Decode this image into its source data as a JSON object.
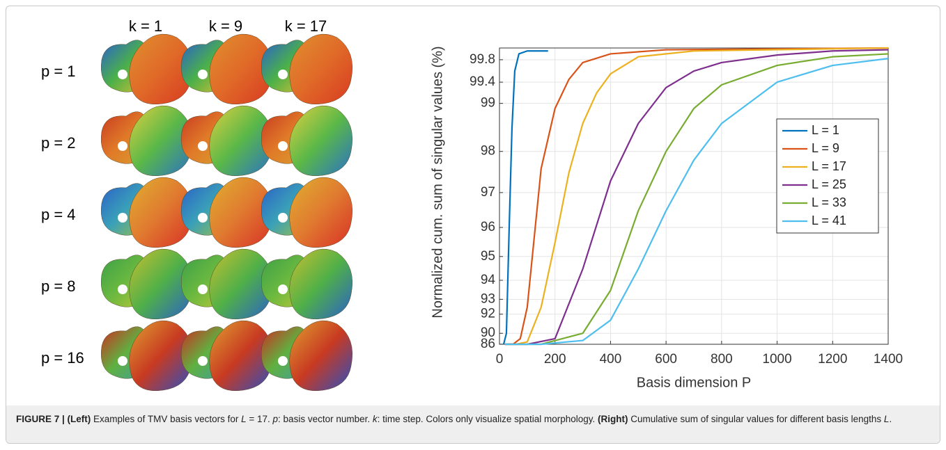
{
  "panel_left": {
    "col_labels": [
      "k = 1",
      "k = 9",
      "k = 17"
    ],
    "row_labels": [
      "p = 1",
      "p = 2",
      "p = 4",
      "p = 8",
      "p = 16"
    ]
  },
  "chart_data": {
    "type": "line",
    "xlabel": "Basis dimension P",
    "ylabel": "Normalized cum. sum of singular values (%)",
    "xlim": [
      0,
      1400
    ],
    "xticks": [
      0,
      200,
      400,
      600,
      800,
      1000,
      1200,
      1400
    ],
    "ylim": [
      85,
      100
    ],
    "yscale": "cubic",
    "yticks": [
      86,
      90,
      92,
      93,
      94,
      95,
      96,
      97,
      98,
      99,
      99.4,
      99.8
    ],
    "grid": true,
    "legend": "right",
    "series": [
      {
        "name": "L = 1",
        "color": "#0072bd",
        "x": [
          15,
          25,
          35,
          45,
          55,
          70,
          100,
          175
        ],
        "values": [
          85,
          90,
          96,
          98.5,
          99.6,
          99.9,
          99.95,
          99.95
        ]
      },
      {
        "name": "L = 9",
        "color": "#d95319",
        "x": [
          20,
          50,
          75,
          100,
          150,
          200,
          250,
          300,
          400,
          600,
          1400
        ],
        "values": [
          85,
          86.5,
          89,
          92.5,
          97.6,
          98.9,
          99.45,
          99.75,
          99.9,
          99.97,
          100
        ]
      },
      {
        "name": "L = 17",
        "color": "#edb120",
        "x": [
          20,
          60,
          100,
          150,
          200,
          250,
          300,
          350,
          400,
          500,
          700,
          1400
        ],
        "values": [
          85,
          85.5,
          88,
          92.5,
          95.5,
          97.5,
          98.6,
          99.2,
          99.55,
          99.85,
          99.95,
          100
        ]
      },
      {
        "name": "L = 25",
        "color": "#7e2f8e",
        "x": [
          20,
          100,
          200,
          300,
          400,
          500,
          600,
          700,
          800,
          1000,
          1200,
          1400
        ],
        "values": [
          85,
          85.3,
          89,
          94.5,
          97.3,
          98.6,
          99.3,
          99.6,
          99.75,
          99.88,
          99.95,
          99.97
        ]
      },
      {
        "name": "L = 33",
        "color": "#77ac30",
        "x": [
          20,
          150,
          300,
          400,
          500,
          600,
          700,
          800,
          1000,
          1200,
          1400
        ],
        "values": [
          85,
          85.5,
          90,
          93.5,
          96.5,
          98,
          98.9,
          99.35,
          99.7,
          99.85,
          99.9
        ]
      },
      {
        "name": "L = 41",
        "color": "#4dbeee",
        "x": [
          20,
          150,
          300,
          400,
          500,
          600,
          700,
          800,
          1000,
          1200,
          1400
        ],
        "values": [
          85,
          85.3,
          88.5,
          91.5,
          94.5,
          96.5,
          97.8,
          98.6,
          99.4,
          99.7,
          99.82
        ]
      }
    ]
  },
  "caption": {
    "parts": [
      "FIGURE 7 | (Left)",
      " Examples of TMV basis vectors for ",
      "L",
      " = 17. ",
      "p",
      ": basis vector number. ",
      "k",
      ": time step. Colors only visualize spatial morphology. ",
      "(Right)",
      " Cumulative sum of singular values for different basis lengths ",
      "L",
      "."
    ]
  }
}
